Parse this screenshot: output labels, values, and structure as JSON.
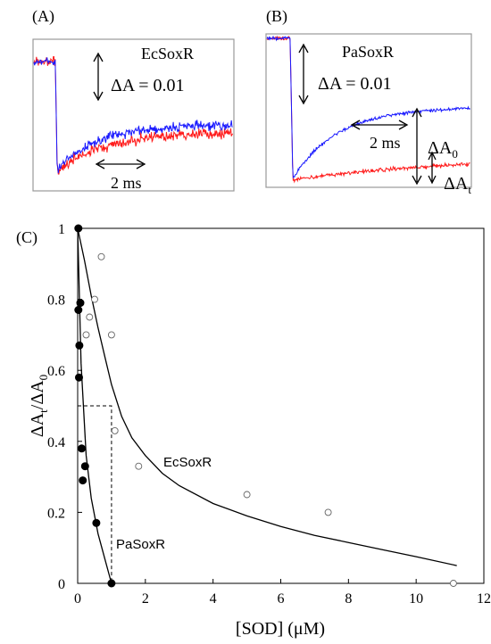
{
  "panels": {
    "a": {
      "label": "(A)",
      "protein": "EcSoxR",
      "scale_prefix": "ΔA = ",
      "scale_value": "0.01",
      "time_scale": "2 ms",
      "trace_colors": {
        "blue": "#1a1aff",
        "red": "#ff1a1a"
      }
    },
    "b": {
      "label": "(B)",
      "protein": "PaSoxR",
      "scale_prefix": "ΔA = ",
      "scale_value": "0.01",
      "time_scale": "2 ms",
      "delta_a": "ΔA",
      "sub_0": "0",
      "sub_t": "t",
      "trace_colors": {
        "blue": "#1a1aff",
        "red": "#ff1a1a"
      }
    },
    "c": {
      "label": "(C)",
      "ylabel_delta": "ΔA",
      "ylabel_sub_t": "t",
      "ylabel_slash": "/",
      "ylabel_sub_0": "0",
      "xlabel": "[SOD] (μM)",
      "curve_label_ec": "EcSoxR",
      "curve_label_pa": "PaSoxR"
    }
  },
  "chart_data": {
    "type": "scatter",
    "title": "",
    "xlabel": "[SOD] (μM)",
    "ylabel": "ΔAt/ΔA0",
    "xlim": [
      0,
      12
    ],
    "ylim": [
      0,
      1
    ],
    "x_ticks": [
      "0",
      "2",
      "4",
      "6",
      "8",
      "10",
      "12"
    ],
    "y_ticks": [
      "0",
      "0.2",
      "0.4",
      "0.6",
      "0.8",
      "1"
    ],
    "grid": false,
    "series": [
      {
        "name": "PaSoxR",
        "marker": "filled circle",
        "points": [
          [
            0.02,
            1.0
          ],
          [
            0.02,
            0.77
          ],
          [
            0.08,
            0.79
          ],
          [
            0.05,
            0.67
          ],
          [
            0.04,
            0.58
          ],
          [
            0.12,
            0.38
          ],
          [
            0.22,
            0.33
          ],
          [
            0.15,
            0.29
          ],
          [
            0.55,
            0.17
          ],
          [
            1.0,
            0.0
          ]
        ],
        "fit": [
          [
            0,
            1.0
          ],
          [
            0.1,
            0.62
          ],
          [
            0.25,
            0.36
          ],
          [
            0.4,
            0.24
          ],
          [
            0.6,
            0.14
          ],
          [
            0.8,
            0.07
          ],
          [
            1.0,
            0.0
          ]
        ]
      },
      {
        "name": "EcSoxR",
        "marker": "open circle",
        "points": [
          [
            0.7,
            0.92
          ],
          [
            0.5,
            0.8
          ],
          [
            0.35,
            0.75
          ],
          [
            0.25,
            0.7
          ],
          [
            1.0,
            0.7
          ],
          [
            1.1,
            0.43
          ],
          [
            1.8,
            0.33
          ],
          [
            5.0,
            0.25
          ],
          [
            7.4,
            0.2
          ],
          [
            11.1,
            0.0
          ]
        ],
        "fit": [
          [
            0,
            1.0
          ],
          [
            0.2,
            0.91
          ],
          [
            0.4,
            0.81
          ],
          [
            0.6,
            0.72
          ],
          [
            0.8,
            0.64
          ],
          [
            1.0,
            0.56
          ],
          [
            1.3,
            0.47
          ],
          [
            1.6,
            0.41
          ],
          [
            2.0,
            0.36
          ],
          [
            2.5,
            0.31
          ],
          [
            3.0,
            0.275
          ],
          [
            4.0,
            0.225
          ],
          [
            5.0,
            0.19
          ],
          [
            6.0,
            0.16
          ],
          [
            7.0,
            0.135
          ],
          [
            8.0,
            0.115
          ],
          [
            9.0,
            0.095
          ],
          [
            10.0,
            0.075
          ],
          [
            11.2,
            0.05
          ]
        ]
      }
    ],
    "half_value_guide": {
      "x": 1.0,
      "y": 0.5
    }
  }
}
